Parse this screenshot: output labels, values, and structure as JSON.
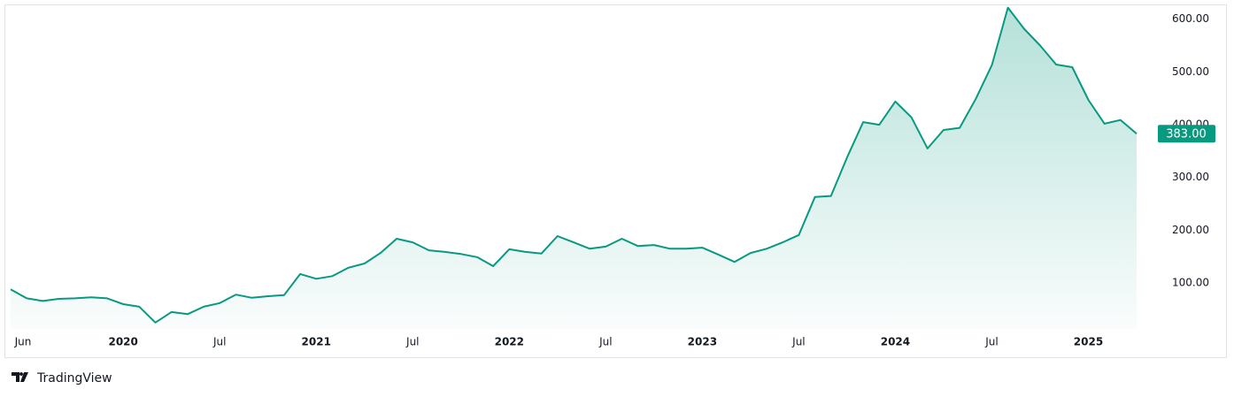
{
  "chart_data": {
    "type": "area",
    "x": [
      "2019-06",
      "2019-07",
      "2019-08",
      "2019-09",
      "2019-10",
      "2019-11",
      "2019-12",
      "2020-01",
      "2020-02",
      "2020-03",
      "2020-04",
      "2020-05",
      "2020-06",
      "2020-07",
      "2020-08",
      "2020-09",
      "2020-10",
      "2020-11",
      "2020-12",
      "2021-01",
      "2021-02",
      "2021-03",
      "2021-04",
      "2021-05",
      "2021-06",
      "2021-07",
      "2021-08",
      "2021-09",
      "2021-10",
      "2021-11",
      "2021-12",
      "2022-01",
      "2022-02",
      "2022-03",
      "2022-04",
      "2022-05",
      "2022-06",
      "2022-07",
      "2022-08",
      "2022-09",
      "2022-10",
      "2022-11",
      "2022-12",
      "2023-01",
      "2023-02",
      "2023-03",
      "2023-04",
      "2023-05",
      "2023-06",
      "2023-07",
      "2023-08",
      "2023-09",
      "2023-10",
      "2023-11",
      "2023-12",
      "2024-01",
      "2024-02",
      "2024-03",
      "2024-04",
      "2024-05",
      "2024-06",
      "2024-07",
      "2024-08",
      "2024-09",
      "2024-10",
      "2024-11",
      "2024-12",
      "2025-01",
      "2025-02",
      "2025-03",
      "2025-04"
    ],
    "values": [
      88,
      71,
      66,
      70,
      71,
      73,
      71,
      60,
      55,
      25,
      45,
      41,
      55,
      62,
      78,
      72,
      75,
      77,
      117,
      108,
      113,
      129,
      137,
      157,
      184,
      177,
      162,
      159,
      155,
      149,
      132,
      164,
      159,
      156,
      189,
      177,
      165,
      169,
      184,
      170,
      172,
      165,
      165,
      167,
      154,
      140,
      157,
      165,
      177,
      191,
      263,
      265,
      338,
      405,
      400,
      444,
      414,
      355,
      390,
      394,
      449,
      513,
      622,
      582,
      550,
      514,
      509,
      447,
      402,
      409,
      383
    ],
    "color": "#089981",
    "price_label": "383.00",
    "xlim": [
      "2019-06",
      "2025-04"
    ],
    "xticks": [
      {
        "value": "2019-06",
        "label": "Jun"
      },
      {
        "value": "2020-01",
        "label": "2020"
      },
      {
        "value": "2020-07",
        "label": "Jul"
      },
      {
        "value": "2021-01",
        "label": "2021"
      },
      {
        "value": "2021-07",
        "label": "Jul"
      },
      {
        "value": "2022-01",
        "label": "2022"
      },
      {
        "value": "2022-07",
        "label": "Jul"
      },
      {
        "value": "2023-01",
        "label": "2023"
      },
      {
        "value": "2023-07",
        "label": "Jul"
      },
      {
        "value": "2024-01",
        "label": "2024"
      },
      {
        "value": "2024-07",
        "label": "Jul"
      },
      {
        "value": "2025-01",
        "label": "2025"
      }
    ],
    "ylim": [
      13,
      628
    ],
    "yticks": [
      {
        "value": 100,
        "label": "100.00"
      },
      {
        "value": 200,
        "label": "200.00"
      },
      {
        "value": 300,
        "label": "300.00"
      },
      {
        "value": 400,
        "label": "400.00"
      },
      {
        "value": 500,
        "label": "500.00"
      },
      {
        "value": 600,
        "label": "600.00"
      }
    ],
    "watermark": "TradingView"
  }
}
